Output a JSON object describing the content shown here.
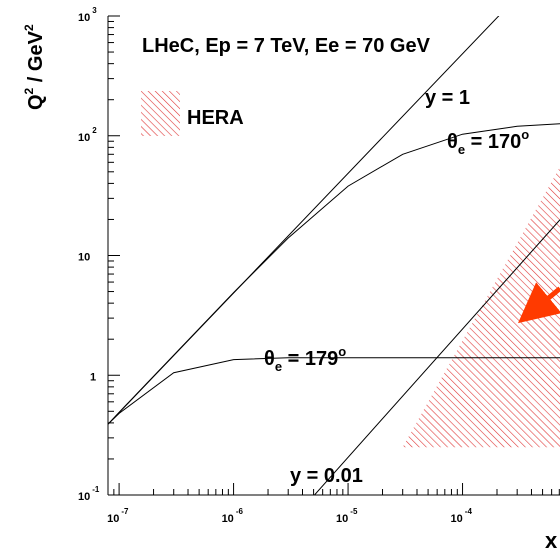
{
  "chart_data": {
    "type": "line",
    "title": "LHeC, Ep = 7 TeV, Ee = 70 GeV",
    "ylabel": {
      "main": "Q",
      "sup1": "2",
      "unit": " / GeV",
      "sup2": "2"
    },
    "xlabel": "x",
    "xscale": "log",
    "yscale": "log",
    "xlim": [
      8e-08,
      0.00071
    ],
    "ylim": [
      0.1,
      1000
    ],
    "xticks": [
      {
        "value": 1e-07,
        "base": "10",
        "exp": "-7"
      },
      {
        "value": 1e-06,
        "base": "10",
        "exp": "-6"
      },
      {
        "value": 1e-05,
        "base": "10",
        "exp": "-5"
      },
      {
        "value": 0.0001,
        "base": "10",
        "exp": "-4"
      }
    ],
    "yticks": [
      {
        "value": 0.1,
        "base": "10",
        "exp": "-1"
      },
      {
        "value": 1,
        "base": "1",
        "exp": ""
      },
      {
        "value": 10,
        "base": "10",
        "exp": ""
      },
      {
        "value": 100,
        "base": "10",
        "exp": "2"
      },
      {
        "value": 1000,
        "base": "10",
        "exp": "3"
      }
    ],
    "legend": {
      "position": "top-left",
      "entries": [
        {
          "label": "HERA",
          "color": "#e03a3a",
          "pattern": "hatched"
        }
      ]
    },
    "series": [
      {
        "name": "y = 1",
        "x": [
          8e-08,
          0.00071
        ],
        "y": [
          0.39,
          3430
        ]
      },
      {
        "name": "y = 0.01",
        "x": [
          4.9e-06,
          0.00071
        ],
        "y": [
          0.096,
          19.9
        ]
      },
      {
        "name": "θe = 170°",
        "x": [
          8e-08,
          1e-07,
          3e-07,
          1e-06,
          3e-06,
          1e-05,
          3e-05,
          0.0001,
          0.0003,
          0.00071
        ],
        "y": [
          0.39,
          0.49,
          1.47,
          4.9,
          14,
          38,
          70,
          103,
          120,
          126
        ]
      },
      {
        "name": "θe = 179°",
        "x": [
          8e-08,
          1e-07,
          3e-07,
          1e-06,
          3e-06,
          1e-05,
          3e-05,
          0.0001,
          0.0003,
          0.00071
        ],
        "y": [
          0.39,
          0.48,
          1.05,
          1.35,
          1.4,
          1.4,
          1.4,
          1.4,
          1.4,
          1.4
        ]
      }
    ],
    "hera_region": {
      "x": [
        3e-05,
        0.00071,
        0.00071
      ],
      "y": [
        0.25,
        0.25,
        55
      ]
    },
    "annotations": [
      {
        "text": "y = 1",
        "x": 0.00013,
        "y": 250
      },
      {
        "text": "y = 0.01",
        "x": 1.2e-05,
        "y": 0.14
      }
    ],
    "theta_labels": [
      {
        "sym": "θ",
        "sub": "e",
        "value": " = 170",
        "deg": "o",
        "x": 0.00017,
        "y": 105
      },
      {
        "sym": "θ",
        "sub": "e",
        "value": " = 179",
        "deg": "o",
        "x": 3e-07,
        "y": 1.3
      }
    ],
    "arrow": {
      "color": "#ff3a00",
      "x": [
        0.00045,
        0.00071
      ],
      "y": [
        3.7,
        5.3
      ]
    },
    "grid": false
  }
}
